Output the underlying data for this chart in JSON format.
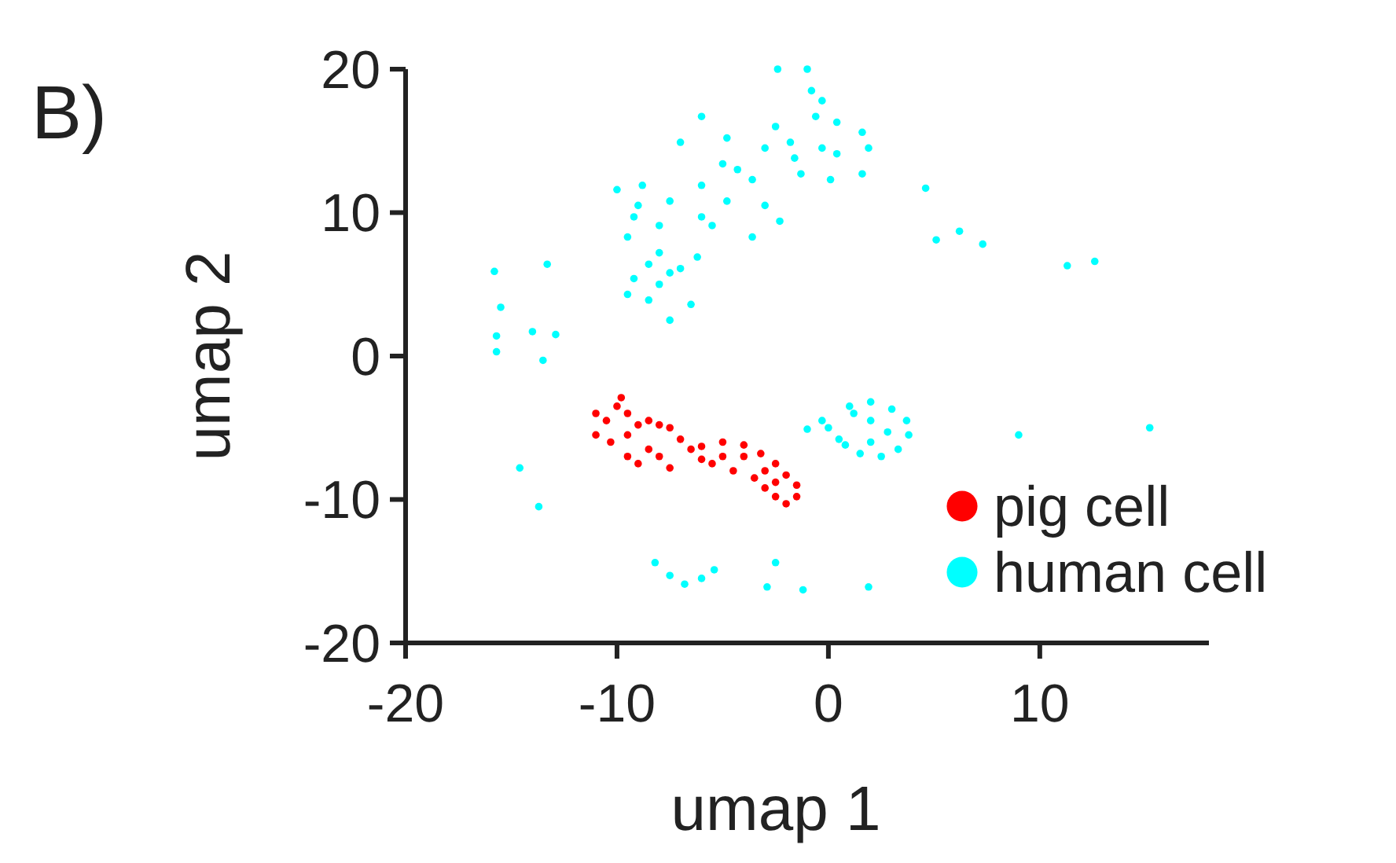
{
  "chart_data": {
    "type": "scatter",
    "xlabel": "umap 1",
    "ylabel": "umap 2",
    "annotations": [
      "B)"
    ],
    "xlim": [
      -20,
      18
    ],
    "ylim": [
      -20,
      20
    ],
    "xticks": [
      -20,
      -10,
      0,
      10
    ],
    "yticks": [
      -20,
      -10,
      0,
      10,
      20
    ],
    "grid": false,
    "legend": "bottom right",
    "marker": "circle",
    "series": [
      {
        "name": "pig cell",
        "color": "#ff0000",
        "x": [
          -11,
          -10.5,
          -10,
          -9.8,
          -9.5,
          -11,
          -10.3,
          -9.5,
          -9,
          -8.5,
          -8,
          -7.5,
          -7,
          -8.5,
          -9.5,
          -9,
          -8,
          -7.5,
          -6.5,
          -6,
          -5,
          -4,
          -3.2,
          -2.5,
          -2,
          -1.5,
          -1.5,
          -2,
          -2.5,
          -3,
          -3.5,
          -4.5,
          -5.5,
          -6,
          -4,
          -5,
          -3,
          -2.5
        ],
        "values": [
          -4,
          -4.5,
          -3.5,
          -2.9,
          -4,
          -5.5,
          -6,
          -5.5,
          -4.8,
          -4.5,
          -4.8,
          -5,
          -5.8,
          -6.5,
          -7,
          -7.5,
          -7,
          -7.8,
          -6.5,
          -6.3,
          -6,
          -6.2,
          -6.8,
          -7.5,
          -8.3,
          -9,
          -9.8,
          -10.3,
          -9.8,
          -9.2,
          -8.5,
          -8,
          -7.5,
          -7.2,
          -7,
          -7,
          -8,
          -8.8
        ]
      },
      {
        "name": "human cell",
        "color": "#00ffff",
        "x": [
          -7.5,
          -9.5,
          -9.2,
          -8,
          -6.5,
          -6.2,
          -8,
          -9.5,
          -9.2,
          -10,
          -8.8,
          -7.5,
          -6,
          -5.5,
          -3.6,
          -2.3,
          -3,
          -4.8,
          -3.6,
          -6,
          -5,
          -7,
          -6,
          -4.8,
          -3,
          -2.5,
          -1.8,
          -1.3,
          0.1,
          1.6,
          0.4,
          -0.3,
          0.4,
          1.6,
          1.9,
          -0.6,
          -0.8,
          -1,
          -0.3,
          -8,
          -8.5,
          -7,
          -9,
          -4.3,
          -1.6,
          -7.5,
          -8.5,
          1,
          2,
          3,
          3.7,
          3.8,
          3.3,
          2.5,
          1.5,
          0.8,
          0,
          -0.3,
          0.5,
          2,
          2.8,
          2,
          1.2,
          -8.2,
          -7.5,
          -6.8,
          -6,
          -5.4,
          -15.8,
          -13.3,
          -15.7,
          -14,
          -12.9,
          -15.7,
          -13.5,
          -14.6,
          -13.7,
          -2.5,
          -2.9,
          -1.2,
          1.9,
          -1,
          4.6,
          5.1,
          6.2,
          7.3,
          11.3,
          12.6,
          9,
          15.2,
          -2.4,
          -15.5
        ],
        "values": [
          2.5,
          4.3,
          5.4,
          5,
          3.6,
          6.9,
          7.2,
          8.3,
          9.7,
          11.6,
          11.9,
          10.8,
          9.7,
          9.1,
          8.3,
          9.4,
          10.5,
          10.8,
          12.3,
          11.9,
          13.4,
          14.9,
          16.7,
          15.2,
          14.5,
          16,
          14.9,
          12.7,
          12.3,
          12.7,
          14.1,
          14.5,
          16.3,
          15.6,
          14.5,
          16.7,
          18.5,
          20,
          17.8,
          9.1,
          6.4,
          6.1,
          10.5,
          13,
          13.8,
          5.8,
          3.9,
          -3.5,
          -3.2,
          -3.7,
          -4.5,
          -5.5,
          -6.5,
          -7,
          -6.8,
          -6.2,
          -5,
          -4.5,
          -5.8,
          -4.5,
          -5.3,
          -6,
          -4,
          -14.4,
          -15.3,
          -15.9,
          -15.5,
          -14.9,
          5.9,
          6.4,
          1.4,
          1.7,
          1.5,
          0.3,
          -0.3,
          -7.8,
          -10.5,
          -14.4,
          -16.1,
          -16.3,
          -16.1,
          -5.1,
          11.7,
          8.1,
          8.7,
          7.8,
          6.3,
          6.6,
          -5.5,
          -5,
          20,
          3.4
        ]
      }
    ]
  }
}
